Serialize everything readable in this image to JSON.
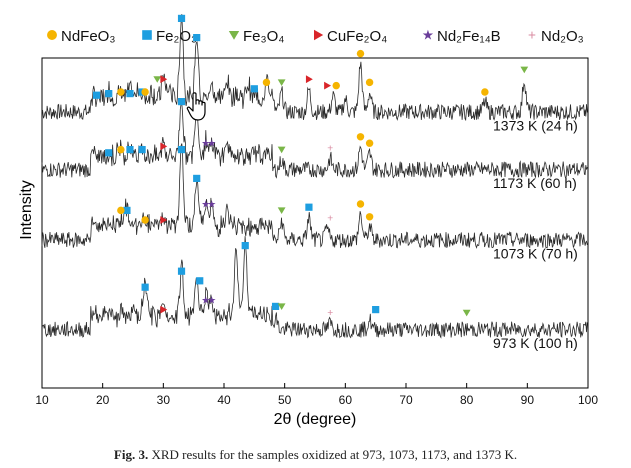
{
  "chart_data": {
    "type": "line",
    "xlabel": "2θ (degree)",
    "ylabel": "Intensity",
    "xlim": [
      10,
      100
    ],
    "xticks": [
      "10",
      "20",
      "30",
      "40",
      "50",
      "60",
      "70",
      "80",
      "90",
      "100"
    ],
    "legend": {
      "placement": "top",
      "entries": [
        {
          "id": "ndfeo3",
          "label": "NdFeO₃",
          "marker": "circle",
          "color": "#f5b400"
        },
        {
          "id": "fe2o3",
          "label": "Fe₂O₃",
          "marker": "square",
          "color": "#1e9ee0"
        },
        {
          "id": "fe3o4",
          "label": "Fe₃O₄",
          "marker": "triangle-down",
          "color": "#7ab648"
        },
        {
          "id": "cufe2o4",
          "label": "CuFe₂O₄",
          "marker": "triangle-right",
          "color": "#d9252a"
        },
        {
          "id": "nd2fe14b",
          "label": "Nd₂Fe₁₄B",
          "marker": "star",
          "color": "#6a3d9a"
        },
        {
          "id": "nd2o3",
          "label": "Nd₂O₃",
          "marker": "plus",
          "color": "#d98aa0"
        }
      ]
    },
    "series": [
      {
        "name": "1373 K (24 h)",
        "baseline": 0.78,
        "peaks": [
          [
            21,
            0.25
          ],
          [
            23,
            0.3
          ],
          [
            24.5,
            0.25
          ],
          [
            26,
            0.3
          ],
          [
            28,
            0.25
          ],
          [
            30,
            0.7
          ],
          [
            31,
            0.3
          ],
          [
            33,
            2.6
          ],
          [
            35.5,
            2.0
          ],
          [
            38,
            0.45
          ],
          [
            40.5,
            0.6
          ],
          [
            42,
            0.25
          ],
          [
            44,
            0.4
          ],
          [
            47,
            0.6
          ],
          [
            48,
            0.3
          ],
          [
            49.5,
            0.6
          ],
          [
            54,
            0.7
          ],
          [
            58,
            0.5
          ],
          [
            60,
            0.4
          ],
          [
            62.5,
            1.5
          ],
          [
            64,
            0.6
          ],
          [
            83,
            0.3
          ],
          [
            89.5,
            1.0
          ]
        ],
        "markers": [
          {
            "phase": "fe2o3",
            "x": [
              19,
              21,
              24.5,
              26.5,
              33,
              35.5,
              45
            ]
          },
          {
            "phase": "ndfeo3",
            "x": [
              23,
              27,
              47,
              58.5,
              62.5,
              64,
              83
            ]
          },
          {
            "phase": "fe3o4",
            "x": [
              29,
              49.5,
              89.5
            ]
          },
          {
            "phase": "cufe2o4",
            "x": [
              30,
              54,
              57
            ]
          }
        ]
      },
      {
        "name": "1173 K (60 h)",
        "baseline": 0.6,
        "peaks": [
          [
            23,
            0.3
          ],
          [
            24.5,
            0.3
          ],
          [
            26.5,
            0.3
          ],
          [
            30,
            0.4
          ],
          [
            33,
            1.8
          ],
          [
            35.5,
            1.5
          ],
          [
            37,
            0.5
          ],
          [
            38,
            0.35
          ],
          [
            40.5,
            0.4
          ],
          [
            49.5,
            0.3
          ],
          [
            57.5,
            0.35
          ],
          [
            62.5,
            0.7
          ],
          [
            64,
            0.5
          ]
        ],
        "markers": [
          {
            "phase": "fe2o3",
            "x": [
              21,
              24.5,
              26.5,
              33,
              35.5
            ]
          },
          {
            "phase": "ndfeo3",
            "x": [
              23,
              62.5,
              64
            ]
          },
          {
            "phase": "cufe2o4",
            "x": [
              30
            ]
          },
          {
            "phase": "nd2fe14b",
            "x": [
              37,
              38
            ]
          },
          {
            "phase": "fe3o4",
            "x": [
              49.5
            ]
          },
          {
            "phase": "nd2o3",
            "x": [
              57.5
            ]
          }
        ]
      },
      {
        "name": "1073 K (70 h)",
        "baseline": 0.38,
        "peaks": [
          [
            23,
            0.3
          ],
          [
            24,
            0.6
          ],
          [
            27,
            0.3
          ],
          [
            30,
            0.3
          ],
          [
            33,
            2.5
          ],
          [
            35.5,
            1.6
          ],
          [
            37,
            0.8
          ],
          [
            38,
            0.6
          ],
          [
            40.5,
            0.4
          ],
          [
            49.5,
            0.6
          ],
          [
            54,
            0.7
          ],
          [
            57,
            0.35
          ],
          [
            62.5,
            0.8
          ],
          [
            64,
            0.4
          ]
        ],
        "markers": [
          {
            "phase": "fe2o3",
            "x": [
              24,
              33,
              35.5,
              54
            ]
          },
          {
            "phase": "ndfeo3",
            "x": [
              23,
              27,
              62.5,
              64
            ]
          },
          {
            "phase": "cufe2o4",
            "x": [
              30
            ]
          },
          {
            "phase": "nd2fe14b",
            "x": [
              37,
              38
            ]
          },
          {
            "phase": "fe3o4",
            "x": [
              49.5
            ]
          },
          {
            "phase": "nd2o3",
            "x": [
              57.5
            ]
          }
        ]
      },
      {
        "name": "973 K (100 h)",
        "baseline": 0.1,
        "peaks": [
          [
            27,
            1.0
          ],
          [
            30,
            0.3
          ],
          [
            33,
            1.5
          ],
          [
            35.5,
            1.2
          ],
          [
            37,
            0.6
          ],
          [
            38,
            0.5
          ],
          [
            42,
            2.1
          ],
          [
            43.5,
            2.3
          ],
          [
            48.5,
            0.4
          ],
          [
            57.5,
            0.2
          ],
          [
            64,
            0.3
          ]
        ],
        "markers": [
          {
            "phase": "fe2o3",
            "x": [
              27,
              33,
              36,
              43.5,
              48.5,
              65
            ]
          },
          {
            "phase": "cufe2o4",
            "x": [
              30
            ]
          },
          {
            "phase": "nd2fe14b",
            "x": [
              37,
              38
            ]
          },
          {
            "phase": "fe3o4",
            "x": [
              49.5,
              80
            ]
          },
          {
            "phase": "nd2o3",
            "x": [
              57.5
            ]
          }
        ]
      }
    ]
  },
  "caption": {
    "label": "Fig. 3.",
    "text": "XRD results for the samples oxidized at 973, 1073, 1173, and 1373 K."
  }
}
